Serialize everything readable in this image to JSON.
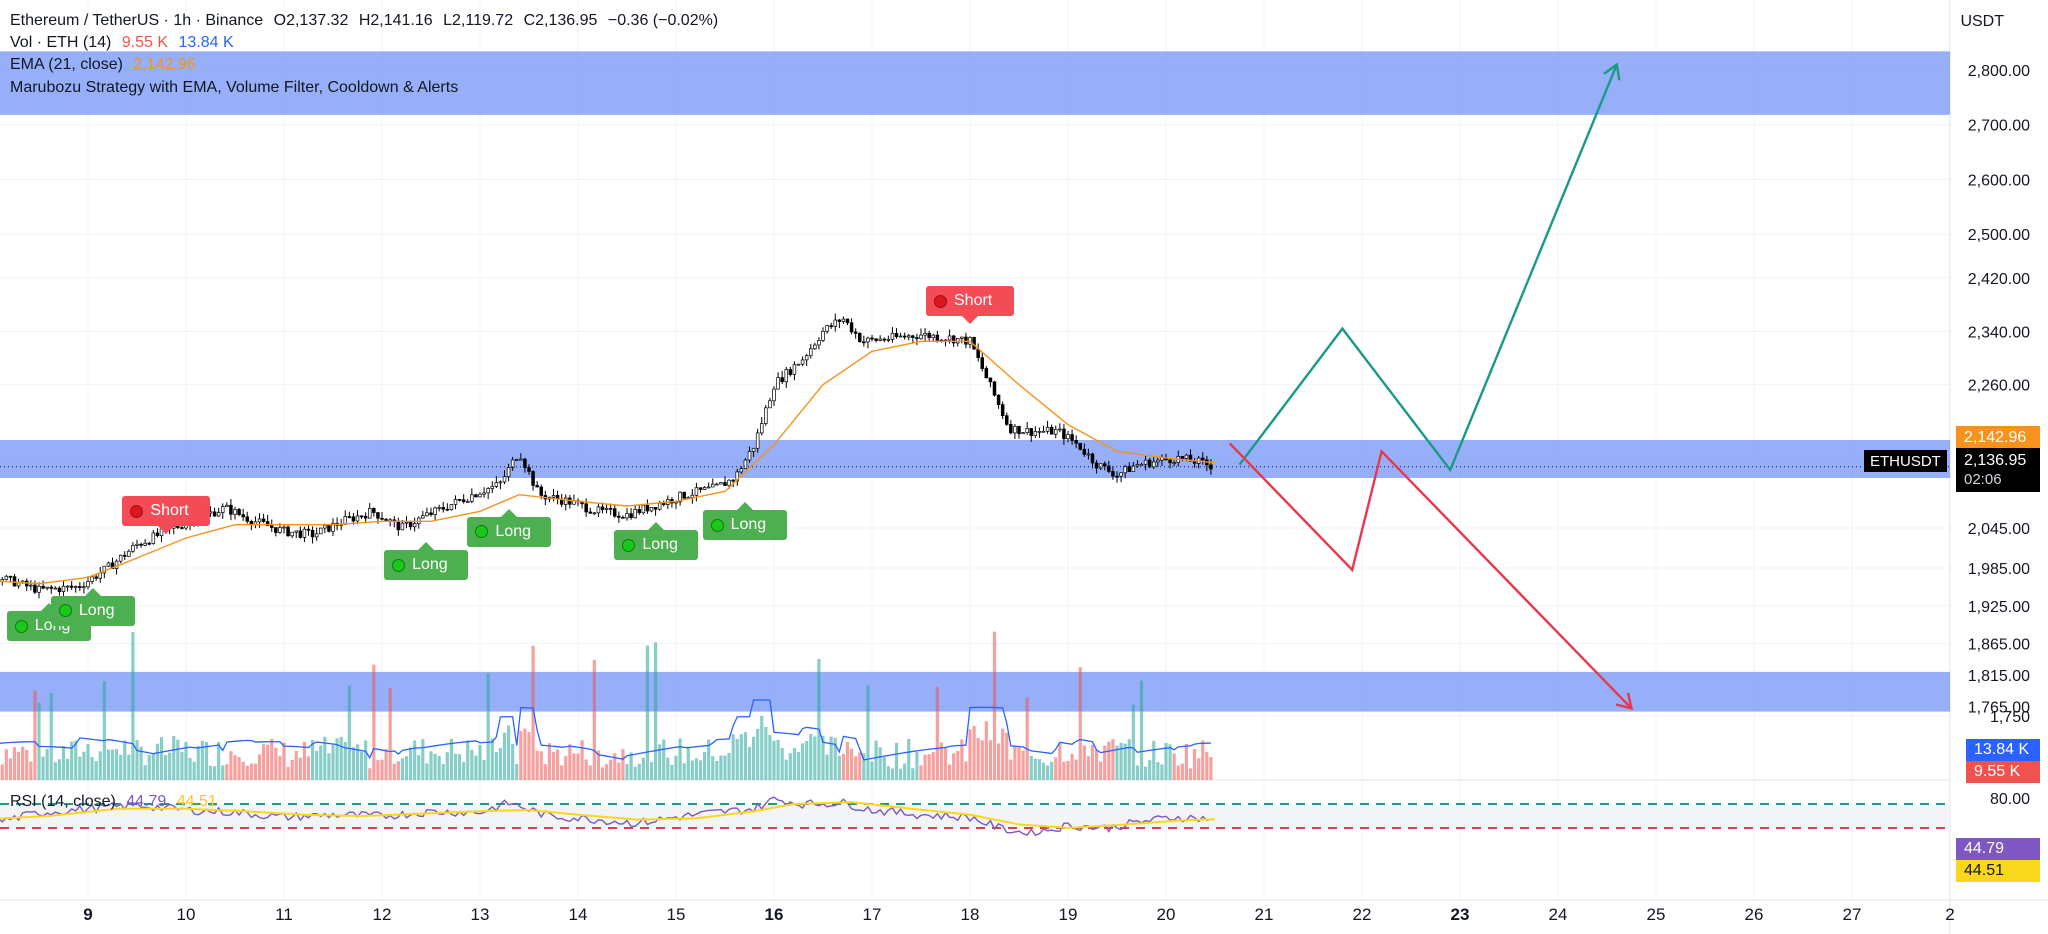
{
  "legend": {
    "symbol": "Ethereum / TetherUS · 1h · Binance",
    "open": "O2,137.32",
    "high": "H2,141.16",
    "low": "L2,119.72",
    "close": "C2,136.95",
    "change": "−0.36 (−0.02%)",
    "vol_label": "Vol · ETH (14)",
    "vol_value": "9.55 K",
    "vol_ma": "13.84 K",
    "ema_label": "EMA (21, close)",
    "ema_value": "2,142.96",
    "strategy_label": "Marubozu Strategy with EMA, Volume Filter, Cooldown & Alerts",
    "rsi_label": "RSI (14, close)",
    "rsi_value": "44.79",
    "rsi_ma": "44.51"
  },
  "axis": {
    "unit": "USDT",
    "price_ticks": [
      "2,800.00",
      "2,700.00",
      "2,600.00",
      "2,500.00",
      "2,420.00",
      "2,340.00",
      "2,260.00",
      "2,142.96",
      "2,045.00",
      "1,985.00",
      "1,925.00",
      "1,865.00",
      "1,815.00",
      "1,765.00",
      "1,750"
    ],
    "rsi_ticks": [
      "80.00"
    ],
    "time_ticks": [
      "9",
      "10",
      "11",
      "12",
      "13",
      "14",
      "15",
      "16",
      "17",
      "18",
      "19",
      "20",
      "21",
      "22",
      "23",
      "24",
      "25",
      "26",
      "27",
      "2"
    ],
    "bold_time_ticks": [
      "9",
      "16",
      "23"
    ]
  },
  "tags": {
    "symbol": "ETHUSDT",
    "ema": "2,142.96",
    "price": "2,136.95",
    "countdown": "02:06",
    "vol_ma": "13.84 K",
    "vol": "9.55 K",
    "rsi": "44.79",
    "rsi_ma": "44.51"
  },
  "signals": [
    {
      "type": "long",
      "label": "Long"
    },
    {
      "type": "long",
      "label": "Long"
    },
    {
      "type": "short",
      "label": "Short"
    },
    {
      "type": "long",
      "label": "Long"
    },
    {
      "type": "long",
      "label": "Long"
    },
    {
      "type": "long",
      "label": "Long"
    },
    {
      "type": "long",
      "label": "Long"
    },
    {
      "type": "short",
      "label": "Short"
    }
  ],
  "colors": {
    "up": "#26a69a",
    "down": "#ef5350",
    "ema": "#f7931a",
    "zone": "#7f9ef7",
    "projection_up": "#1a9a86",
    "projection_down": "#e8384f",
    "rsi": "#7e57c2",
    "rsi_ma": "#f9d71c",
    "vol_ma": "#2962ff"
  },
  "chart_data": {
    "type": "candlestick",
    "symbol": "ETHUSDT",
    "timeframe": "1h",
    "x_labels": [
      "9",
      "10",
      "11",
      "12",
      "13",
      "14",
      "15",
      "16",
      "17",
      "18",
      "19",
      "20",
      "21",
      "22",
      "23",
      "24",
      "25",
      "26",
      "27",
      "2"
    ],
    "price_path": [
      [
        8.0,
        1975
      ],
      [
        8.5,
        1950
      ],
      [
        8.9,
        1955
      ],
      [
        9.2,
        1985
      ],
      [
        9.5,
        2020
      ],
      [
        9.8,
        2040
      ],
      [
        10.1,
        2060
      ],
      [
        10.4,
        2075
      ],
      [
        10.7,
        2055
      ],
      [
        11.0,
        2040
      ],
      [
        11.3,
        2035
      ],
      [
        11.6,
        2055
      ],
      [
        11.9,
        2070
      ],
      [
        12.2,
        2045
      ],
      [
        12.4,
        2060
      ],
      [
        12.7,
        2080
      ],
      [
        13.0,
        2100
      ],
      [
        13.2,
        2110
      ],
      [
        13.4,
        2160
      ],
      [
        13.6,
        2095
      ],
      [
        13.9,
        2085
      ],
      [
        14.2,
        2070
      ],
      [
        14.5,
        2065
      ],
      [
        14.8,
        2080
      ],
      [
        15.1,
        2095
      ],
      [
        15.4,
        2105
      ],
      [
        15.6,
        2120
      ],
      [
        15.8,
        2170
      ],
      [
        16.0,
        2260
      ],
      [
        16.3,
        2300
      ],
      [
        16.5,
        2340
      ],
      [
        16.7,
        2360
      ],
      [
        16.9,
        2325
      ],
      [
        17.2,
        2330
      ],
      [
        17.5,
        2335
      ],
      [
        17.8,
        2330
      ],
      [
        18.0,
        2325
      ],
      [
        18.2,
        2260
      ],
      [
        18.4,
        2195
      ],
      [
        18.6,
        2190
      ],
      [
        18.9,
        2190
      ],
      [
        19.1,
        2170
      ],
      [
        19.3,
        2140
      ],
      [
        19.5,
        2125
      ],
      [
        19.7,
        2140
      ],
      [
        19.9,
        2145
      ],
      [
        20.1,
        2150
      ],
      [
        20.3,
        2145
      ],
      [
        20.5,
        2137
      ]
    ],
    "ema_path": [
      [
        8.0,
        1965
      ],
      [
        8.5,
        1960
      ],
      [
        9.0,
        1970
      ],
      [
        9.5,
        2000
      ],
      [
        10.0,
        2030
      ],
      [
        10.5,
        2050
      ],
      [
        11.0,
        2050
      ],
      [
        11.5,
        2050
      ],
      [
        12.0,
        2055
      ],
      [
        12.5,
        2055
      ],
      [
        13.0,
        2070
      ],
      [
        13.4,
        2095
      ],
      [
        14.0,
        2085
      ],
      [
        14.5,
        2078
      ],
      [
        15.0,
        2085
      ],
      [
        15.5,
        2100
      ],
      [
        16.0,
        2170
      ],
      [
        16.5,
        2260
      ],
      [
        17.0,
        2310
      ],
      [
        17.5,
        2325
      ],
      [
        18.0,
        2325
      ],
      [
        18.5,
        2260
      ],
      [
        19.0,
        2200
      ],
      [
        19.5,
        2160
      ],
      [
        20.0,
        2150
      ],
      [
        20.5,
        2143
      ]
    ],
    "zones": [
      {
        "from": 2718,
        "to": 2834
      },
      {
        "from": 2120,
        "to": 2177
      },
      {
        "from": 1757,
        "to": 1820
      }
    ],
    "projections": [
      {
        "direction": "up",
        "points": [
          [
            20.75,
            2140
          ],
          [
            21.8,
            2344
          ],
          [
            22.9,
            2132
          ],
          [
            24.6,
            2810
          ]
        ]
      },
      {
        "direction": "down",
        "points": [
          [
            20.65,
            2172
          ],
          [
            21.9,
            1982
          ],
          [
            22.2,
            2160
          ],
          [
            24.75,
            1762
          ]
        ]
      }
    ],
    "last_price": 2136.95,
    "ema_last": 2142.96,
    "volume": {
      "last": 9.55,
      "ma": 13.84,
      "unit": "K"
    },
    "rsi": {
      "length": 14,
      "last": 44.79,
      "ma_last": 44.51,
      "upper": 70,
      "lower": 30,
      "path": [
        [
          8.0,
          38
        ],
        [
          8.5,
          55
        ],
        [
          9.0,
          62
        ],
        [
          9.5,
          68
        ],
        [
          10.0,
          60
        ],
        [
          10.5,
          56
        ],
        [
          11.0,
          48
        ],
        [
          11.5,
          52
        ],
        [
          12.0,
          50
        ],
        [
          12.5,
          57
        ],
        [
          13.0,
          56
        ],
        [
          13.3,
          72
        ],
        [
          13.7,
          50
        ],
        [
          14.2,
          44
        ],
        [
          14.6,
          38
        ],
        [
          15.0,
          48
        ],
        [
          15.4,
          56
        ],
        [
          15.8,
          62
        ],
        [
          16.0,
          78
        ],
        [
          16.3,
          70
        ],
        [
          16.7,
          72
        ],
        [
          17.0,
          60
        ],
        [
          17.5,
          52
        ],
        [
          18.0,
          48
        ],
        [
          18.3,
          30
        ],
        [
          18.6,
          20
        ],
        [
          19.0,
          34
        ],
        [
          19.4,
          30
        ],
        [
          19.8,
          42
        ],
        [
          20.1,
          48
        ],
        [
          20.5,
          45
        ]
      ],
      "ma_path": [
        [
          8.0,
          45
        ],
        [
          8.6,
          50
        ],
        [
          9.3,
          62
        ],
        [
          10.0,
          62
        ],
        [
          10.6,
          58
        ],
        [
          11.2,
          52
        ],
        [
          11.8,
          50
        ],
        [
          12.4,
          54
        ],
        [
          13.0,
          58
        ],
        [
          13.5,
          60
        ],
        [
          14.0,
          52
        ],
        [
          14.6,
          44
        ],
        [
          15.2,
          46
        ],
        [
          15.8,
          58
        ],
        [
          16.2,
          70
        ],
        [
          16.8,
          73
        ],
        [
          17.4,
          62
        ],
        [
          18.0,
          52
        ],
        [
          18.5,
          36
        ],
        [
          19.0,
          30
        ],
        [
          19.6,
          36
        ],
        [
          20.1,
          42
        ],
        [
          20.5,
          44.5
        ]
      ]
    },
    "signal_points": [
      {
        "type": "long",
        "t": 8.6,
        "price": 1935
      },
      {
        "type": "long",
        "t": 9.05,
        "price": 1960
      },
      {
        "type": "short",
        "t": 9.8,
        "price": 2030
      },
      {
        "type": "long",
        "t": 12.45,
        "price": 2030
      },
      {
        "type": "long",
        "t": 13.3,
        "price": 2080
      },
      {
        "type": "long",
        "t": 14.8,
        "price": 2060
      },
      {
        "type": "long",
        "t": 15.7,
        "price": 2090
      },
      {
        "type": "short",
        "t": 18.0,
        "price": 2345
      }
    ]
  }
}
